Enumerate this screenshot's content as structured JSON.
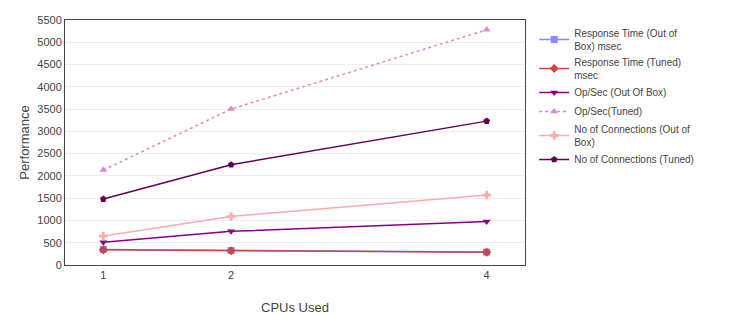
{
  "chart_data": {
    "type": "line",
    "xlabel": "CPUs Used",
    "ylabel": "Performance",
    "x": [
      1,
      2,
      4
    ],
    "series": [
      {
        "name": "Response Time (Out of\nBox) msec",
        "color": "#8888ff",
        "marker": "square",
        "line_style": "solid",
        "values": [
          350,
          325,
          290
        ]
      },
      {
        "name": "Response Time (Tuned)\nmsec",
        "color": "#cc4444",
        "marker": "diamond",
        "line_style": "solid",
        "values": [
          340,
          320,
          285
        ]
      },
      {
        "name": "Op/Sec (Out Of Box)",
        "color": "#880088",
        "marker": "triangle-down",
        "line_style": "solid",
        "values": [
          510,
          755,
          975
        ]
      },
      {
        "name": "Op/Sec(Tuned)",
        "color": "#dd88cc",
        "marker": "triangle-up",
        "line_style": "dot",
        "values": [
          2130,
          3500,
          5280
        ]
      },
      {
        "name": "No of Connections (Out of\nBox)",
        "color": "#ffaaaa",
        "marker": "cross",
        "line_style": "solid",
        "values": [
          650,
          1090,
          1570
        ]
      },
      {
        "name": "No of Connections (Tuned)",
        "color": "#660055",
        "marker": "pentagon",
        "line_style": "solid",
        "values": [
          1480,
          2250,
          3230
        ]
      }
    ],
    "xlim": [
      0.7,
      4.3
    ],
    "xticks": [
      1,
      2,
      4
    ],
    "ylim": [
      0,
      5500
    ],
    "yticks": [
      0,
      500,
      1000,
      1500,
      2000,
      2500,
      3000,
      3500,
      4000,
      4500,
      5000,
      5500
    ],
    "grid": "y",
    "legend": "right"
  }
}
